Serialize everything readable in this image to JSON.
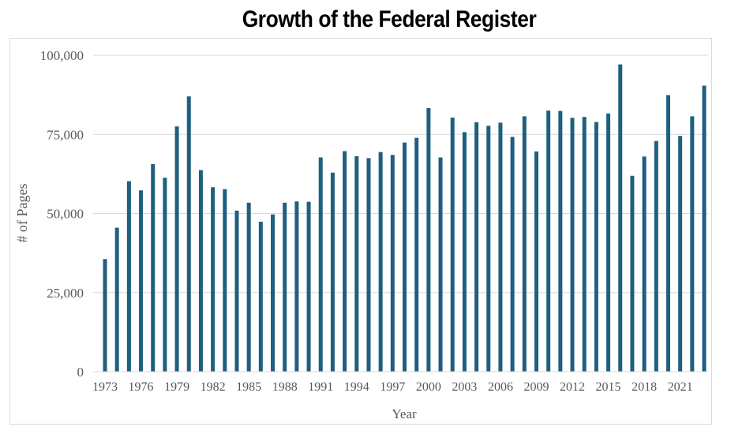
{
  "chart_data": {
    "type": "bar",
    "title": "Growth of the Federal Register",
    "xlabel": "Year",
    "ylabel": "# of Pages",
    "ylim": [
      0,
      100000
    ],
    "yticks": [
      0,
      25000,
      50000,
      75000,
      100000
    ],
    "ytick_labels": [
      "0",
      "25,000",
      "50,000",
      "75,000",
      "100,000"
    ],
    "xtick_labels": [
      "1973",
      "1976",
      "1979",
      "1982",
      "1985",
      "1988",
      "1991",
      "1994",
      "1997",
      "2000",
      "2003",
      "2006",
      "2009",
      "2012",
      "2015",
      "2018",
      "2021"
    ],
    "grid": true,
    "bar_color": "#1f5f7f",
    "categories": [
      "1973",
      "1974",
      "1975",
      "1976",
      "1977",
      "1978",
      "1979",
      "1980",
      "1981",
      "1982",
      "1983",
      "1984",
      "1985",
      "1986",
      "1987",
      "1988",
      "1989",
      "1990",
      "1991",
      "1992",
      "1993",
      "1994",
      "1995",
      "1996",
      "1997",
      "1998",
      "1999",
      "2000",
      "2001",
      "2002",
      "2003",
      "2004",
      "2005",
      "2006",
      "2007",
      "2008",
      "2009",
      "2010",
      "2011",
      "2012",
      "2013",
      "2014",
      "2015",
      "2016",
      "2017",
      "2018",
      "2019",
      "2020",
      "2021",
      "2022",
      "2023"
    ],
    "values": [
      35600,
      45500,
      60200,
      57300,
      65600,
      61300,
      77500,
      87000,
      63700,
      58300,
      57700,
      50900,
      53400,
      47400,
      49700,
      53400,
      53800,
      53700,
      67700,
      62900,
      69700,
      68100,
      67500,
      69400,
      68500,
      72400,
      73900,
      83300,
      67700,
      80300,
      75700,
      78800,
      77700,
      78700,
      74200,
      80700,
      69600,
      82500,
      82400,
      80200,
      80500,
      78900,
      81600,
      97100,
      61900,
      68000,
      72900,
      87400,
      74500,
      80700,
      90400
    ]
  }
}
